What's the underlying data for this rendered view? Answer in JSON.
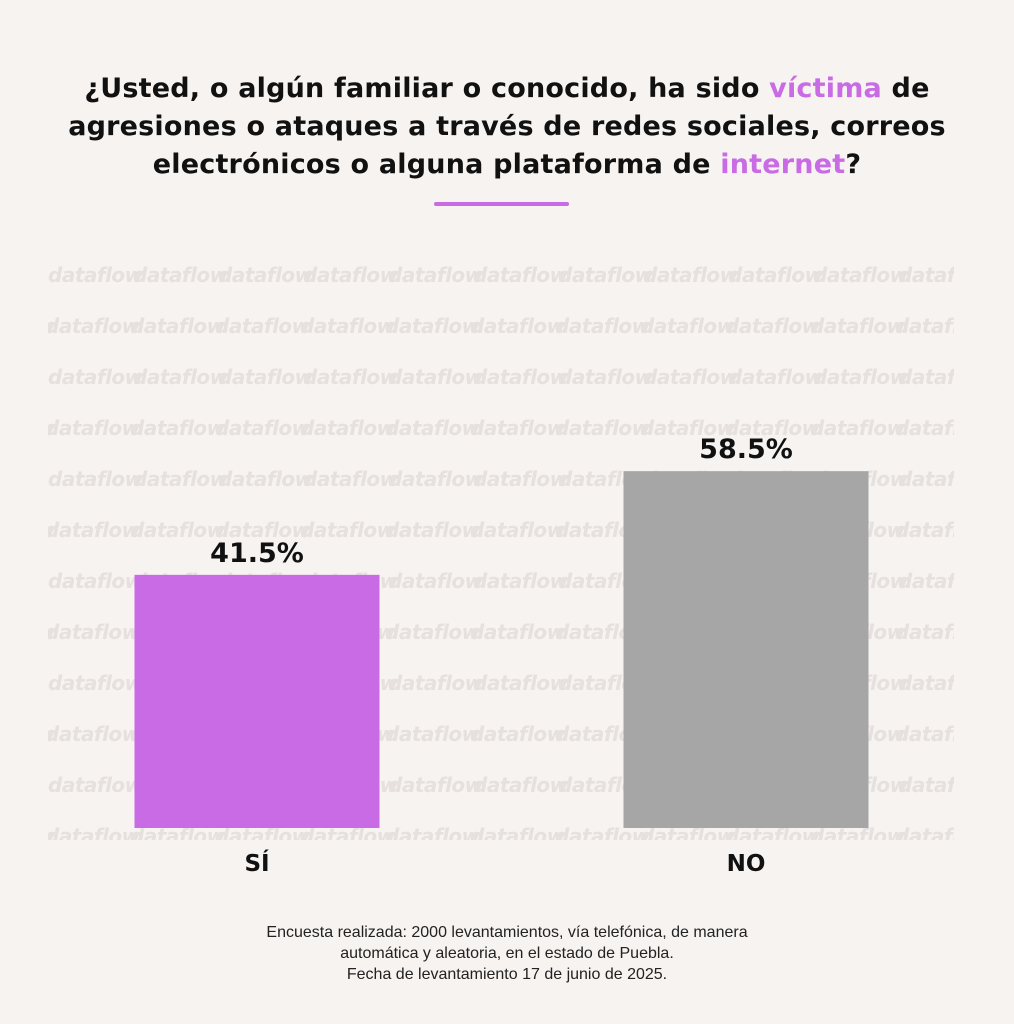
{
  "title": {
    "part1": "¿Usted, o algún familiar o conocido, ha sido ",
    "highlight1": "víctima",
    "part2": " de agresiones o ataques a través de redes sociales, correos electrónicos o alguna plataforma de ",
    "highlight2": "internet",
    "part3": "?"
  },
  "watermark_text": "dataflow",
  "colors": {
    "accent": "#c96be5",
    "gray_bar": "#a6a6a6",
    "background": "#f6f3f1"
  },
  "chart_data": {
    "type": "bar",
    "categories": [
      "SÍ",
      "NO"
    ],
    "values": [
      41.5,
      58.5
    ],
    "value_labels": [
      "41.5%",
      "58.5%"
    ],
    "bar_colors": [
      "#c96be5",
      "#a6a6a6"
    ],
    "ylim": [
      0,
      80
    ],
    "grid": false,
    "title": "",
    "xlabel": "",
    "ylabel": ""
  },
  "footer": {
    "line1": "Encuesta realizada: 2000 levantamientos, vía telefónica, de manera",
    "line2": "automática y aleatoria, en el estado de Puebla.",
    "line3": "Fecha de levantamiento 17 de junio de 2025."
  }
}
